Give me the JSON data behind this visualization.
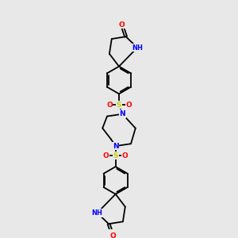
{
  "bg_color": "#e8e8e8",
  "bond_color": "#000000",
  "atom_colors": {
    "O": "#ff0000",
    "N": "#0000ff",
    "S": "#cccc00",
    "H": "#008080",
    "C": "#000000"
  },
  "lw": 1.3,
  "dbo": 0.055,
  "fs": 6.5,
  "xlim": [
    0,
    10
  ],
  "ylim": [
    0,
    10
  ]
}
